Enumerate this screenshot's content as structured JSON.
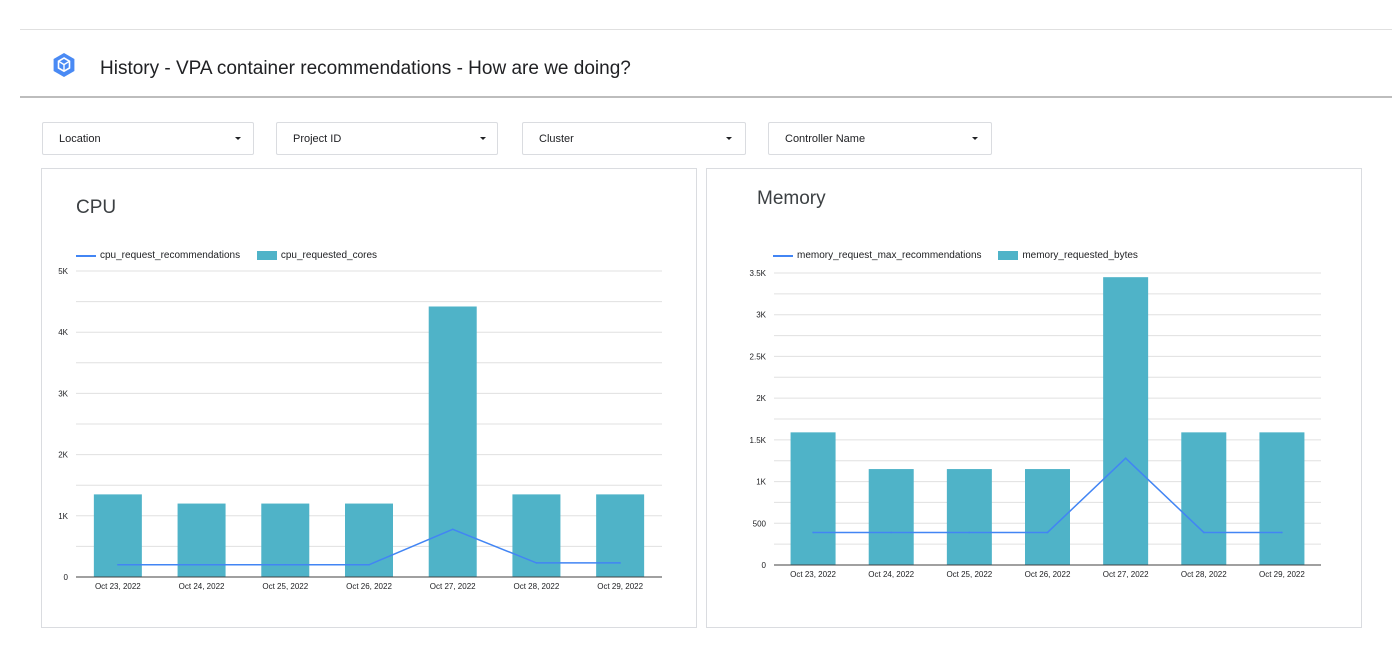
{
  "header": {
    "title": "History - VPA container recommendations - How are we doing?",
    "logo_icon": "kubernetes-engine-hexagon-icon"
  },
  "filters": [
    {
      "label": "Location"
    },
    {
      "label": "Project ID"
    },
    {
      "label": "Cluster"
    },
    {
      "label": "Controller Name"
    }
  ],
  "colors": {
    "bar": "#4fb3c8",
    "line": "#4285f4",
    "grid": "#e0e0e0",
    "axis": "#424242",
    "logo": "#4a8af4"
  },
  "chart_data": [
    {
      "type": "bar",
      "title": "CPU",
      "categories": [
        "Oct 23, 2022",
        "Oct 24, 2022",
        "Oct 25, 2022",
        "Oct 26, 2022",
        "Oct 27, 2022",
        "Oct 28, 2022",
        "Oct 29, 2022"
      ],
      "series": [
        {
          "name": "cpu_request_recommendations",
          "kind": "line",
          "values": [
            200,
            200,
            200,
            200,
            780,
            230,
            230
          ]
        },
        {
          "name": "cpu_requested_cores",
          "kind": "bar",
          "values": [
            1350,
            1200,
            1200,
            1200,
            4420,
            1350,
            1350
          ]
        }
      ],
      "yticks": [
        {
          "value": 0,
          "label": "0"
        },
        {
          "value": 1000,
          "label": "1K"
        },
        {
          "value": 2000,
          "label": "2K"
        },
        {
          "value": 3000,
          "label": "3K"
        },
        {
          "value": 4000,
          "label": "4K"
        },
        {
          "value": 5000,
          "label": "5K"
        }
      ],
      "ylim": [
        0,
        5000
      ],
      "grid": true,
      "legend_position": "top-left"
    },
    {
      "type": "bar",
      "title": "Memory",
      "categories": [
        "Oct 23, 2022",
        "Oct 24, 2022",
        "Oct 25, 2022",
        "Oct 26, 2022",
        "Oct 27, 2022",
        "Oct 28, 2022",
        "Oct 29, 2022"
      ],
      "series": [
        {
          "name": "memory_request_max_recommendations",
          "kind": "line",
          "values": [
            390,
            390,
            390,
            390,
            1280,
            390,
            390
          ]
        },
        {
          "name": "memory_requested_bytes",
          "kind": "bar",
          "values": [
            1590,
            1150,
            1150,
            1150,
            3450,
            1590,
            1590
          ]
        }
      ],
      "yticks": [
        {
          "value": 0,
          "label": "0"
        },
        {
          "value": 500,
          "label": "500"
        },
        {
          "value": 1000,
          "label": "1K"
        },
        {
          "value": 1500,
          "label": "1.5K"
        },
        {
          "value": 2000,
          "label": "2K"
        },
        {
          "value": 2500,
          "label": "2.5K"
        },
        {
          "value": 3000,
          "label": "3K"
        },
        {
          "value": 3500,
          "label": "3.5K"
        }
      ],
      "ylim": [
        0,
        3500
      ],
      "grid": true,
      "legend_position": "top-left"
    }
  ]
}
